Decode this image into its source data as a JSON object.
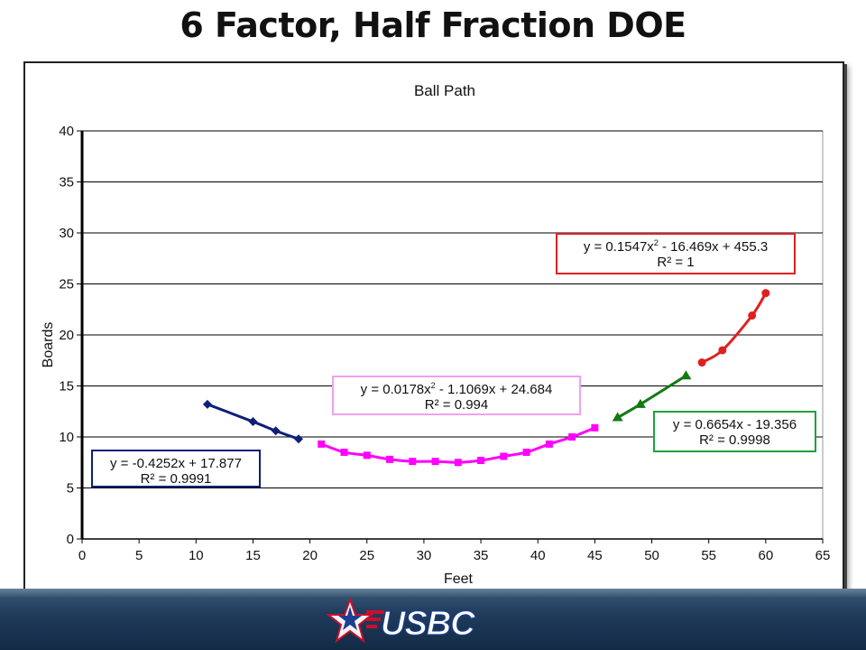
{
  "slide": {
    "title": "6 Factor, Half Fraction DOE"
  },
  "chart_data": {
    "type": "scatter",
    "title": "Ball Path",
    "xlabel": "Feet",
    "ylabel": "Boards",
    "xlim": [
      0,
      65
    ],
    "ylim": [
      0,
      40
    ],
    "xticks": [
      0,
      5,
      10,
      15,
      20,
      25,
      30,
      35,
      40,
      45,
      50,
      55,
      60,
      65
    ],
    "yticks": [
      0,
      5,
      10,
      15,
      20,
      25,
      30,
      35,
      40
    ],
    "grid": "horizontal",
    "series": [
      {
        "color": "#0d1f7a",
        "marker": "diamond",
        "x": [
          11,
          15,
          17,
          19
        ],
        "y": [
          13.2,
          11.5,
          10.6,
          9.8
        ]
      },
      {
        "color": "#ff00ff",
        "marker": "square",
        "x": [
          21,
          23,
          25,
          27,
          29,
          31,
          33,
          35,
          37,
          39,
          41,
          43,
          45
        ],
        "y": [
          9.3,
          8.5,
          8.2,
          7.8,
          7.6,
          7.6,
          7.5,
          7.7,
          8.1,
          8.5,
          9.3,
          10.0,
          10.9
        ]
      },
      {
        "color": "#137a13",
        "marker": "triangle",
        "x": [
          47,
          49,
          53
        ],
        "y": [
          11.9,
          13.2,
          16.0
        ]
      },
      {
        "color": "#e02020",
        "marker": "circle",
        "x": [
          54.4,
          56.2,
          58.8,
          60
        ],
        "y": [
          17.3,
          18.5,
          21.9,
          24.1
        ]
      }
    ],
    "trendlines": [
      {
        "series_index": 0,
        "border_color": "#0d1f7a",
        "equation_pre": "y = -0.4252x + 17.877",
        "sup": "",
        "equation_post": "",
        "r2": "R² = 0.9991"
      },
      {
        "series_index": 1,
        "border_color": "#f0a0f0",
        "equation_pre": "y = 0.0178x",
        "sup": "2",
        "equation_post": " - 1.1069x + 24.684",
        "r2": "R² = 0.994"
      },
      {
        "series_index": 2,
        "border_color": "#20a040",
        "equation_pre": "y = 0.6654x - 19.356",
        "sup": "",
        "equation_post": "",
        "r2": "R² = 0.9998"
      },
      {
        "series_index": 3,
        "border_color": "#e02020",
        "equation_pre": "y = 0.1547x",
        "sup": "2",
        "equation_post": " - 16.469x + 455.3",
        "r2": "R² = 1"
      }
    ]
  },
  "footer": {
    "logo_text": "USBC"
  }
}
